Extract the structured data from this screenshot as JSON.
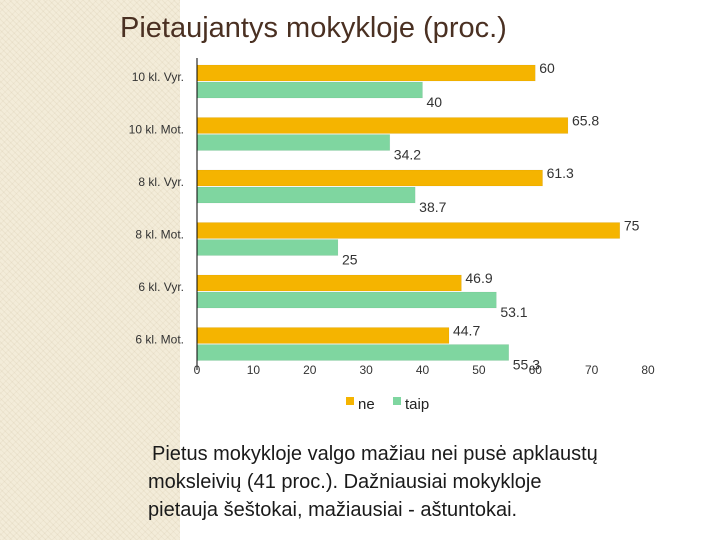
{
  "slide": {
    "title": "Pietaujantys mokykloje  (proc.)",
    "caption_lines": [
      "Pietus mokykloje valgo mažiau nei pusė apklaustų",
      "moksleivių (41 proc.). Dažniausiai mokykloje",
      "pietauja šeštokai, mažiausiai - aštuntokai."
    ]
  },
  "chart_data": {
    "type": "bar",
    "orientation": "horizontal",
    "title": "",
    "xlabel": "",
    "ylabel": "",
    "categories": [
      "10 kl. Vyr.",
      "10 kl. Mot.",
      "8 kl. Vyr.",
      "8 kl. Mot.",
      "6 kl. Vyr.",
      "6 kl. Mot."
    ],
    "series": [
      {
        "name": "ne",
        "color": "#f5b400",
        "values": [
          60,
          65.8,
          61.3,
          75,
          46.9,
          44.7
        ]
      },
      {
        "name": "taip",
        "color": "#7fd6a0",
        "values": [
          40,
          34.2,
          38.7,
          25,
          53.1,
          55.3
        ]
      }
    ],
    "xlim": [
      0,
      80
    ],
    "xticks": [
      0,
      10,
      20,
      30,
      40,
      50,
      60,
      70,
      80
    ],
    "grid": false,
    "legend_position": "bottom"
  }
}
